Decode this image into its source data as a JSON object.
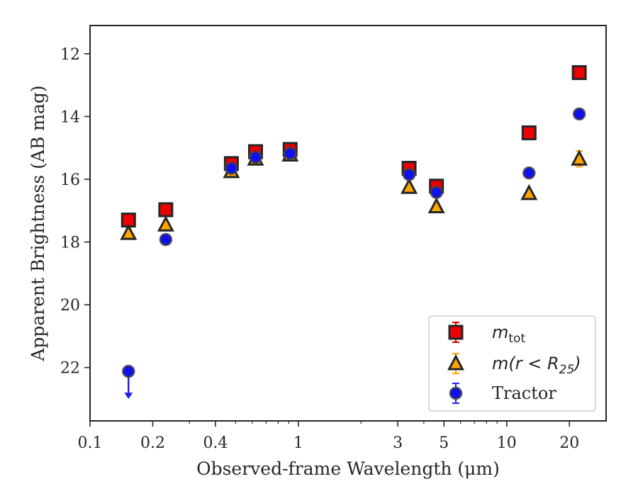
{
  "chart_data": {
    "type": "scatter",
    "xlabel": "Observed-frame Wavelength (μm)",
    "ylabel": "Apparent Brightness (AB mag)",
    "xscale": "log",
    "xlim": [
      0.1,
      30
    ],
    "ylim": [
      23.7,
      11.1
    ],
    "y_inverted": true,
    "grid": false,
    "legend_position": "lower-right",
    "x_tick_labels": [
      "0.1",
      "0.2",
      "0.4",
      "1",
      "3",
      "5",
      "10",
      "20"
    ],
    "x_tick_values": [
      0.1,
      0.2,
      0.4,
      1,
      3,
      5,
      10,
      20
    ],
    "y_tick_labels": [
      "12",
      "14",
      "16",
      "18",
      "20",
      "22"
    ],
    "y_tick_values": [
      12,
      14,
      16,
      18,
      20,
      22
    ],
    "series": [
      {
        "marker": "square",
        "color": "#ee0000",
        "edge_color": "#262626",
        "error_color": "#cc0000",
        "points": [
          {
            "x": 0.153,
            "y": 17.3
          },
          {
            "x": 0.231,
            "y": 16.97
          },
          {
            "x": 0.477,
            "y": 15.5
          },
          {
            "x": 0.623,
            "y": 15.12
          },
          {
            "x": 0.913,
            "y": 15.05
          },
          {
            "x": 3.4,
            "y": 15.65
          },
          {
            "x": 4.6,
            "y": 16.22
          },
          {
            "x": 12.8,
            "y": 14.52
          },
          {
            "x": 22.3,
            "y": 12.6
          }
        ]
      },
      {
        "marker": "triangle",
        "color": "#ffa500",
        "edge_color": "#262626",
        "error_color": "#ffa500",
        "points": [
          {
            "x": 0.153,
            "y": 17.72
          },
          {
            "x": 0.231,
            "y": 17.45
          },
          {
            "x": 0.477,
            "y": 15.75
          },
          {
            "x": 0.623,
            "y": 15.35
          },
          {
            "x": 0.913,
            "y": 15.22
          },
          {
            "x": 3.4,
            "y": 16.25
          },
          {
            "x": 4.6,
            "y": 16.87
          },
          {
            "x": 12.8,
            "y": 16.45
          },
          {
            "x": 22.3,
            "y": 15.35,
            "yerr": 0.25
          }
        ]
      },
      {
        "marker": "circle",
        "color": "#1010ee",
        "edge_color": "#444444",
        "error_color": "#2020ee",
        "points": [
          {
            "x": 0.153,
            "y": 22.12,
            "upper_limit": true,
            "arrow_to": 22.98
          },
          {
            "x": 0.231,
            "y": 17.92
          },
          {
            "x": 0.477,
            "y": 15.65
          },
          {
            "x": 0.623,
            "y": 15.3
          },
          {
            "x": 0.913,
            "y": 15.18
          },
          {
            "x": 3.4,
            "y": 15.85
          },
          {
            "x": 4.6,
            "y": 16.42
          },
          {
            "x": 12.8,
            "y": 15.8
          },
          {
            "x": 22.3,
            "y": 13.92
          }
        ]
      }
    ],
    "legend": [
      {
        "math": "m",
        "sub": "tot",
        "marker": "square"
      },
      {
        "math": "m(r < R",
        "sub": "25",
        "close": ")",
        "marker": "triangle"
      },
      {
        "label": "Tractor",
        "marker": "circle"
      }
    ]
  }
}
